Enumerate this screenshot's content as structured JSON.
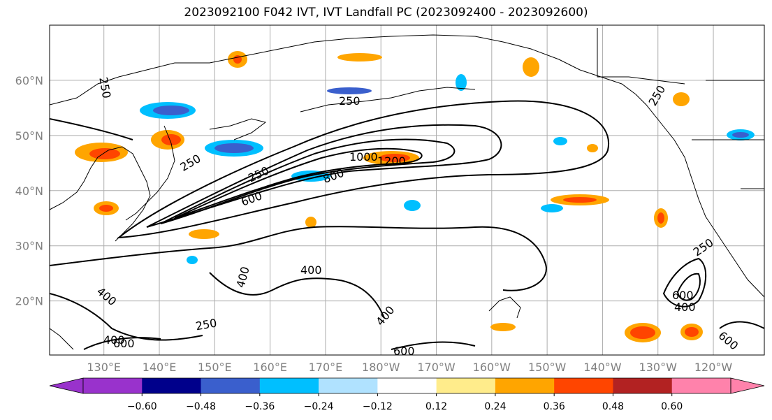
{
  "title": "2023092100 F042 IVT, IVT Landfall PC (2023092400 - 2023092600)",
  "lat_labels": [
    "20°N",
    "30°N",
    "40°N",
    "50°N",
    "60°N"
  ],
  "lat_values": [
    20,
    30,
    40,
    50,
    60
  ],
  "lon_labels": [
    "130°E",
    "140°E",
    "150°E",
    "160°E",
    "170°E",
    "180°W",
    "170°W",
    "160°W",
    "150°W",
    "140°W",
    "130°W",
    "120°W"
  ],
  "lon_values": [
    130,
    140,
    150,
    160,
    170,
    180,
    190,
    200,
    210,
    220,
    230,
    240
  ],
  "contour_labels": [
    "250",
    "250",
    "250",
    "250",
    "400",
    "400",
    "400",
    "400",
    "600",
    "600",
    "600",
    "800",
    "1000",
    "1200",
    "250",
    "400",
    "600",
    "250",
    "400",
    "250",
    "600"
  ],
  "colorbar": {
    "ticks": [
      "−0.60",
      "−0.48",
      "−0.36",
      "−0.24",
      "−0.12",
      "0.12",
      "0.24",
      "0.36",
      "0.48",
      "0.60"
    ],
    "colors": [
      "#9932cc",
      "#00008b",
      "#3a5fcd",
      "#00bfff",
      "#b0e2ff",
      "#ffffff",
      "#ffec8b",
      "#ffa500",
      "#ff4500",
      "#b22222",
      "#ff82ab"
    ]
  }
}
